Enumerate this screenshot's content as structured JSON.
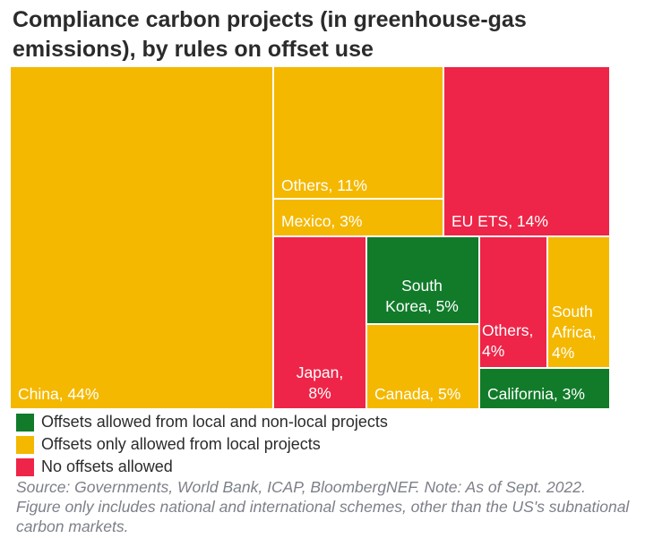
{
  "title": "Compliance carbon projects (in greenhouse-gas emissions), by rules on offset use",
  "colors": {
    "local_and_nonlocal": "#117b2a",
    "local_only": "#f4b800",
    "none": "#ee2548"
  },
  "legend": [
    {
      "label": "Offsets allowed from local and non-local projects",
      "color": "#117b2a"
    },
    {
      "label": "Offsets only allowed from local projects",
      "color": "#f4b800"
    },
    {
      "label": "No offsets allowed",
      "color": "#ee2548"
    }
  ],
  "source": "Source: Governments, World Bank, ICAP, BloombergNEF. Note: As of Sept. 2022. Figure only includes national and international schemes, other than the US's subnational carbon markets.",
  "chart_data": {
    "type": "treemap",
    "title": "Compliance carbon projects (in greenhouse-gas emissions), by rules on offset use",
    "unit": "%",
    "items": [
      {
        "name": "China",
        "value": 44,
        "category": "Offsets only allowed from local projects",
        "label_lines": [
          "China, 44%"
        ]
      },
      {
        "name": "Others",
        "value": 11,
        "category": "Offsets only allowed from local projects",
        "label_lines": [
          "Others, 11%"
        ]
      },
      {
        "name": "Mexico",
        "value": 3,
        "category": "Offsets only allowed from local projects",
        "label_lines": [
          "Mexico, 3%"
        ]
      },
      {
        "name": "EU ETS",
        "value": 14,
        "category": "No offsets allowed",
        "label_lines": [
          "EU ETS, 14%"
        ]
      },
      {
        "name": "Japan",
        "value": 8,
        "category": "No offsets allowed",
        "label_lines": [
          "Japan,",
          "8%"
        ]
      },
      {
        "name": "South Korea",
        "value": 5,
        "category": "Offsets allowed from local and non-local projects",
        "label_lines": [
          "South",
          "Korea, 5%"
        ]
      },
      {
        "name": "Canada",
        "value": 5,
        "category": "Offsets only allowed from local projects",
        "label_lines": [
          "Canada, 5%"
        ]
      },
      {
        "name": "Others",
        "value": 4,
        "category": "No offsets allowed",
        "label_lines": [
          "Others,",
          "4%"
        ]
      },
      {
        "name": "South Africa",
        "value": 4,
        "category": "Offsets only allowed from local projects",
        "label_lines": [
          "South",
          "Africa,",
          "4%"
        ]
      },
      {
        "name": "California",
        "value": 3,
        "category": "Offsets allowed from local and non-local projects",
        "label_lines": [
          "California, 3%"
        ]
      }
    ]
  }
}
